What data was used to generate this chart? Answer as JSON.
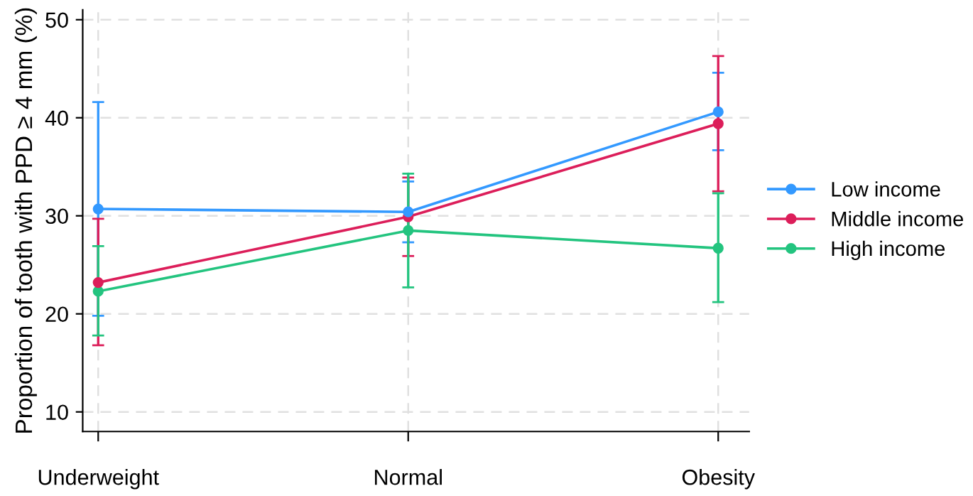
{
  "chart_data": {
    "type": "line",
    "ylabel": "Proportion of tooth with PPD ≥ 4 mm (%)",
    "categories": [
      "Underweight",
      "Normal",
      "Obesity"
    ],
    "ylim": [
      8,
      51
    ],
    "yticks": [
      10,
      20,
      30,
      40,
      50
    ],
    "grid": true,
    "legend": "right",
    "marker": "circle",
    "line_style": "solid",
    "series": [
      {
        "name": "Low income",
        "color": "#3399ff",
        "values": [
          30.7,
          30.4,
          40.6
        ],
        "errors": [
          [
            19.8,
            41.6
          ],
          [
            27.3,
            33.5
          ],
          [
            36.7,
            44.6
          ]
        ]
      },
      {
        "name": "Middle income",
        "color": "#dc1e5a",
        "values": [
          23.2,
          29.9,
          39.4
        ],
        "errors": [
          [
            16.8,
            29.7
          ],
          [
            25.9,
            33.9
          ],
          [
            32.5,
            46.3
          ]
        ]
      },
      {
        "name": "High income",
        "color": "#23c47f",
        "values": [
          22.3,
          28.5,
          26.7
        ],
        "errors": [
          [
            17.8,
            26.9
          ],
          [
            22.7,
            34.3
          ],
          [
            21.2,
            32.3
          ]
        ]
      }
    ]
  }
}
